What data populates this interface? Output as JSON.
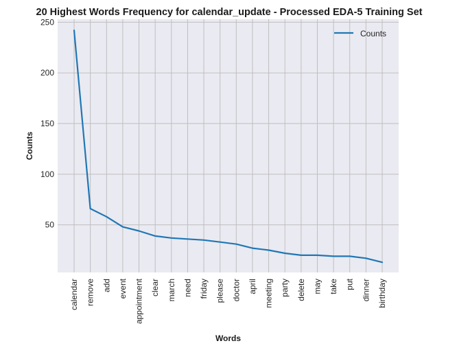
{
  "chart_data": {
    "type": "line",
    "title": "20 Highest Words Frequency for calendar_update - Processed EDA-5 Training Set",
    "xlabel": "Words",
    "ylabel": "Counts",
    "categories": [
      "calendar",
      "remove",
      "add",
      "event",
      "appointment",
      "clear",
      "march",
      "need",
      "friday",
      "please",
      "doctor",
      "april",
      "meeting",
      "party",
      "delete",
      "may",
      "take",
      "put",
      "dinner",
      "birthday"
    ],
    "series": [
      {
        "name": "Counts",
        "color": "#1f77b4",
        "values": [
          242,
          66,
          58,
          48,
          44,
          39,
          37,
          36,
          35,
          33,
          31,
          27,
          25,
          22,
          20,
          20,
          19,
          19,
          17,
          13
        ]
      }
    ],
    "ylim": [
      3,
      253
    ],
    "yticks": [
      50,
      100,
      150,
      200,
      250
    ],
    "grid": true,
    "legend_position": "top-right",
    "background_color": "#eaeaf2",
    "grid_color": "#bfbfbf"
  }
}
